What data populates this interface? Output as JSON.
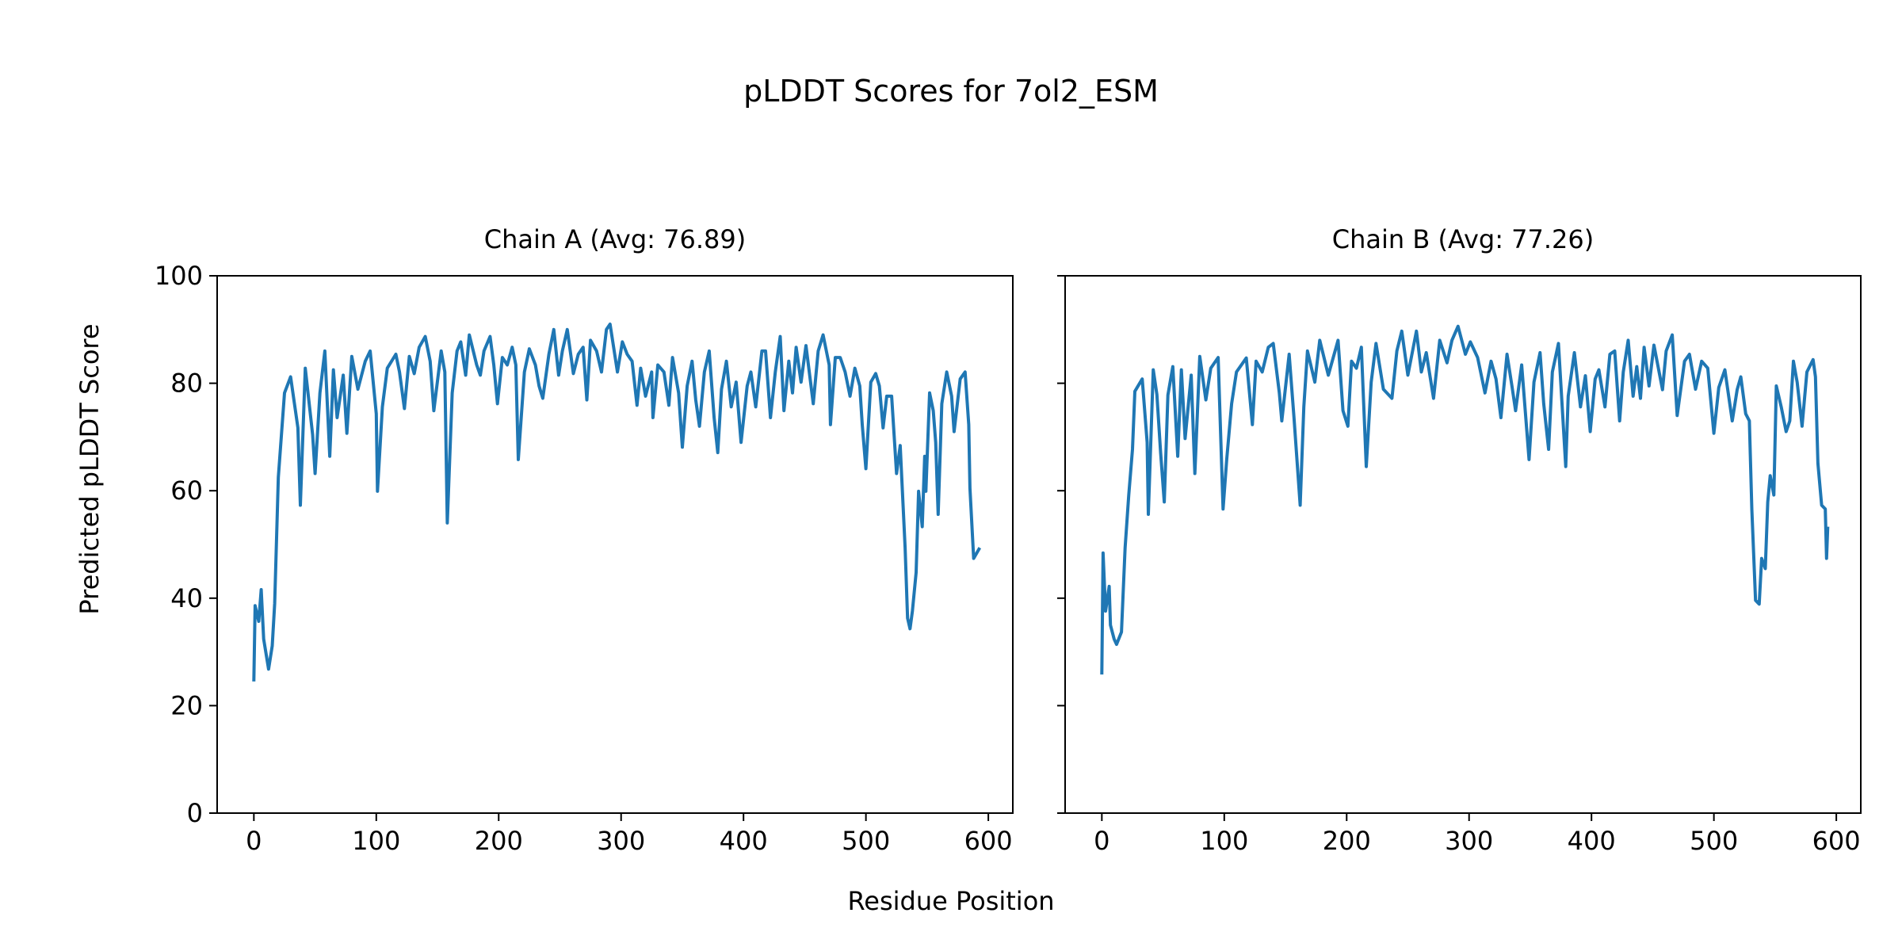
{
  "chart_data": {
    "type": "line",
    "title": "pLDDT Scores for 7ol2_ESM",
    "xlabel": "Residue Position",
    "ylabel": "Predicted pLDDT Score",
    "ylim": [
      0,
      100
    ],
    "xlim": [
      -30,
      620
    ],
    "xticks": [
      0,
      100,
      200,
      300,
      400,
      500,
      600
    ],
    "yticks": [
      0,
      20,
      40,
      60,
      80,
      100
    ],
    "line_color": "#1f77b4",
    "grid": false,
    "sharey": true,
    "panels": [
      {
        "title": "Chain A (Avg: 76.89)",
        "x": [
          0,
          1,
          4,
          6,
          8,
          12,
          15,
          17,
          20,
          25,
          30,
          36,
          38,
          42,
          48,
          50,
          54,
          58,
          62,
          65,
          68,
          73,
          76,
          80,
          85,
          91,
          95,
          100,
          101,
          105,
          109,
          116,
          119,
          123,
          127,
          131,
          135,
          140,
          144,
          147,
          153,
          156,
          158,
          162,
          166,
          169,
          173,
          176,
          182,
          185,
          188,
          193,
          196,
          199,
          203,
          207,
          211,
          214,
          216,
          221,
          225,
          230,
          233,
          236,
          241,
          245,
          249,
          252,
          256,
          261,
          265,
          269,
          272,
          275,
          280,
          284,
          288,
          291,
          297,
          301,
          305,
          309,
          313,
          316,
          320,
          325,
          326,
          330,
          335,
          339,
          342,
          347,
          350,
          354,
          358,
          361,
          364,
          368,
          372,
          376,
          379,
          382,
          386,
          390,
          394,
          398,
          403,
          406,
          410,
          415,
          418,
          422,
          426,
          430,
          433,
          437,
          440,
          443,
          447,
          451,
          457,
          461,
          465,
          470,
          471,
          475,
          479,
          483,
          487,
          491,
          495,
          497,
          500,
          504,
          508,
          511,
          514,
          517,
          521,
          525,
          528,
          532,
          534,
          536,
          538,
          541,
          543,
          546,
          548,
          549,
          552,
          555,
          557,
          559,
          562,
          566,
          570,
          572,
          577,
          581,
          584,
          585,
          588,
          593
        ],
        "y": [
          24.5,
          38.6,
          35.7,
          41.6,
          32.4,
          26.8,
          31.1,
          39,
          62.5,
          78.2,
          81.2,
          71.7,
          57.3,
          82.8,
          70.4,
          63.2,
          78.2,
          86,
          66.4,
          82.5,
          73.6,
          81.5,
          70.7,
          85,
          78.9,
          84.1,
          86,
          74.3,
          59.9,
          75.6,
          82.8,
          85.4,
          82.1,
          75.3,
          85,
          81.8,
          86.7,
          88.7,
          84.1,
          74.9,
          86,
          82.1,
          54,
          78.2,
          86,
          87.7,
          81.5,
          89,
          83.4,
          81.5,
          86,
          88.7,
          83.4,
          76.2,
          84.8,
          83.4,
          86.7,
          83.4,
          65.8,
          82.1,
          86.4,
          83.4,
          79.5,
          77.2,
          85.4,
          90,
          81.5,
          86,
          90,
          81.8,
          85.4,
          86.7,
          76.9,
          88,
          86,
          82.1,
          90,
          91,
          82.1,
          87.7,
          85.4,
          84.1,
          75.9,
          82.8,
          77.6,
          82.1,
          73.6,
          83.4,
          82.1,
          75.9,
          84.8,
          78.2,
          68.1,
          79.5,
          84.1,
          76.9,
          72,
          82.1,
          86,
          73.6,
          67.1,
          78.9,
          84.1,
          75.6,
          80.2,
          69,
          79.5,
          82.1,
          75.6,
          86,
          86,
          73.6,
          82.1,
          88.7,
          74.9,
          84.1,
          78.2,
          86.7,
          80.2,
          87,
          76.2,
          86,
          89,
          83.4,
          72.3,
          84.8,
          84.8,
          82.1,
          77.6,
          82.8,
          79.5,
          72.3,
          64.1,
          80.2,
          81.8,
          79.5,
          71.7,
          77.6,
          77.6,
          63.2,
          68.4,
          49.4,
          36.3,
          34.3,
          37.6,
          44.8,
          59.9,
          53.3,
          66.4,
          59.9,
          78.2,
          74.9,
          69,
          55.6,
          76.2,
          82.1,
          77.6,
          71,
          80.8,
          82.1,
          72.3,
          60.5,
          47.4,
          49.4
        ]
      },
      {
        "title": "Chain B (Avg: 77.26)",
        "x": [
          0,
          1,
          3,
          6,
          7,
          10,
          12,
          16,
          19,
          22,
          25,
          27,
          33,
          37,
          38,
          42,
          45,
          48,
          51,
          54,
          58,
          62,
          65,
          68,
          73,
          76,
          80,
          85,
          89,
          95,
          99,
          102,
          106,
          110,
          118,
          123,
          126,
          131,
          136,
          140,
          145,
          147,
          153,
          157,
          162,
          165,
          168,
          174,
          178,
          185,
          193,
          197,
          201,
          204,
          208,
          212,
          216,
          220,
          224,
          230,
          237,
          241,
          245,
          250,
          257,
          261,
          265,
          271,
          276,
          282,
          286,
          291,
          297,
          301,
          307,
          313,
          318,
          322,
          326,
          331,
          335,
          338,
          343,
          349,
          353,
          358,
          361,
          365,
          368,
          373,
          379,
          381,
          386,
          391,
          395,
          399,
          403,
          406,
          411,
          415,
          419,
          423,
          426,
          430,
          434,
          437,
          440,
          443,
          447,
          451,
          458,
          461,
          466,
          470,
          476,
          480,
          485,
          490,
          495,
          500,
          504,
          509,
          515,
          519,
          522,
          526,
          529,
          531,
          534,
          537,
          539,
          542,
          544,
          546,
          549,
          551,
          555,
          559,
          562,
          565,
          568,
          572,
          576,
          581,
          583,
          585,
          588,
          591,
          592,
          593
        ],
        "y": [
          25.8,
          48.4,
          37.6,
          42.2,
          35,
          32.4,
          31.4,
          33.7,
          49.4,
          59.2,
          67.7,
          78.5,
          80.8,
          69,
          55.6,
          82.5,
          77.9,
          67.1,
          57.9,
          77.8,
          83.1,
          66.4,
          82.5,
          69.7,
          81.5,
          63.2,
          85,
          76.9,
          82.8,
          84.8,
          56.6,
          65.8,
          76.2,
          82.1,
          84.7,
          72.3,
          84.1,
          82.1,
          86.7,
          87.4,
          78.2,
          73,
          85.4,
          73.6,
          57.3,
          75.6,
          86,
          80.2,
          88,
          81.5,
          88,
          74.9,
          72,
          84.1,
          82.8,
          86.7,
          64.5,
          80.2,
          87.4,
          78.9,
          77.2,
          86,
          89.7,
          81.5,
          89.7,
          82.1,
          85.7,
          77.2,
          88,
          83.8,
          88,
          90.6,
          85.4,
          87.7,
          84.8,
          78.2,
          84.1,
          80.8,
          73.6,
          85.4,
          79.5,
          74.9,
          83.4,
          65.8,
          80.2,
          85.7,
          76.2,
          67.7,
          82.1,
          87.4,
          64.5,
          77.6,
          85.7,
          75.6,
          81.4,
          71,
          80.8,
          82.5,
          75.6,
          85.4,
          86,
          73,
          82.1,
          88,
          77.6,
          83.1,
          77.2,
          86.7,
          79.5,
          87.1,
          78.8,
          86,
          89,
          74,
          84.1,
          85.4,
          78.9,
          84.1,
          82.8,
          70.7,
          79.2,
          82.5,
          73,
          78.8,
          81.2,
          74.3,
          73,
          56.6,
          39.6,
          38.9,
          47.4,
          45.5,
          57.9,
          62.8,
          59.2,
          79.5,
          75.6,
          71,
          73,
          84.1,
          80.2,
          72,
          82.1,
          84.4,
          81.2,
          65.1,
          57.3,
          56.6,
          47.4,
          53.3
        ]
      }
    ]
  }
}
